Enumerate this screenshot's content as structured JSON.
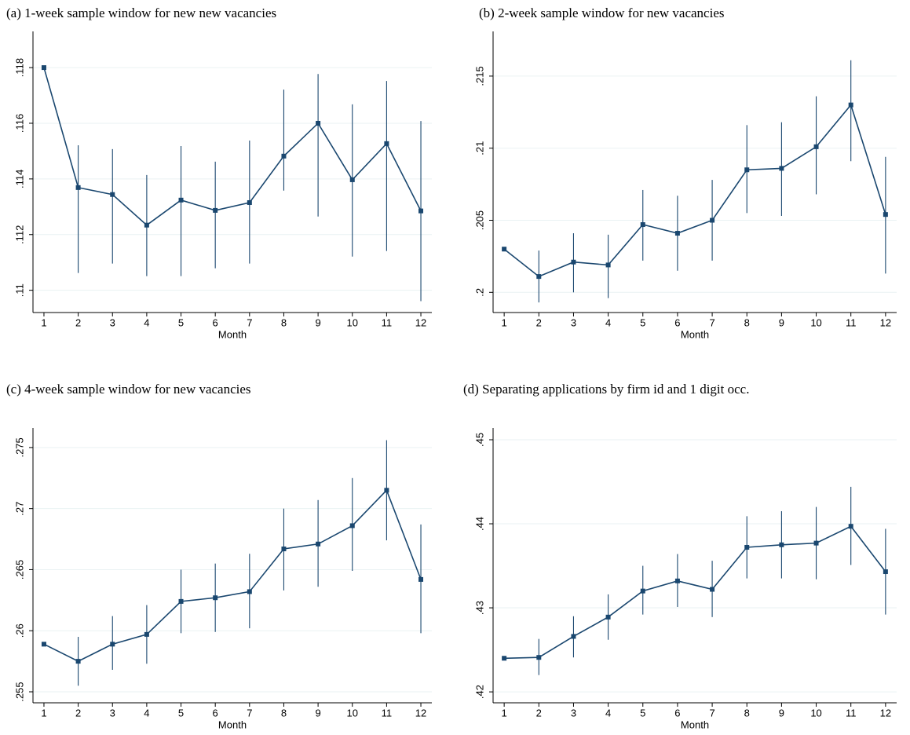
{
  "chart_data": [
    {
      "type": "line",
      "title": "(a) 1-week sample window for new new vacancies",
      "x_label": "Month",
      "x": [
        1,
        2,
        3,
        4,
        5,
        6,
        7,
        8,
        9,
        10,
        11,
        12
      ],
      "xlim": [
        0.68,
        12.32
      ],
      "xticks": [
        1,
        2,
        3,
        4,
        5,
        6,
        7,
        8,
        9,
        10,
        11,
        12
      ],
      "ylim": [
        0.1092,
        0.1193
      ],
      "yticks": [
        {
          "value": 0.11,
          "label": ".11"
        },
        {
          "value": 0.112,
          "label": ".112"
        },
        {
          "value": 0.114,
          "label": ".114"
        },
        {
          "value": 0.116,
          "label": ".116"
        },
        {
          "value": 0.118,
          "label": ".118"
        }
      ],
      "grid": true,
      "color": "#1a476f",
      "values": [
        0.118,
        0.11369,
        0.11344,
        0.11234,
        0.11324,
        0.11287,
        0.11315,
        0.11482,
        0.116,
        0.11397,
        0.11527,
        0.11285
      ],
      "lower": [
        null,
        0.11062,
        0.11096,
        0.11051,
        0.11051,
        0.11079,
        0.11096,
        0.11358,
        0.11265,
        0.11121,
        0.11141,
        0.10961
      ],
      "upper": [
        null,
        0.11521,
        0.11507,
        0.11414,
        0.11518,
        0.11462,
        0.11538,
        0.11721,
        0.11777,
        0.11668,
        0.11752,
        0.11608
      ]
    },
    {
      "type": "line",
      "title": "(b) 2-week sample window for new vacancies",
      "x_label": "Month",
      "x": [
        1,
        2,
        3,
        4,
        5,
        6,
        7,
        8,
        9,
        10,
        11,
        12
      ],
      "xlim": [
        0.68,
        12.32
      ],
      "xticks": [
        1,
        2,
        3,
        4,
        5,
        6,
        7,
        8,
        9,
        10,
        11,
        12
      ],
      "ylim": [
        0.1986,
        0.2181
      ],
      "yticks": [
        {
          "value": 0.2,
          "label": ".2"
        },
        {
          "value": 0.205,
          "label": ".205"
        },
        {
          "value": 0.21,
          "label": ".21"
        },
        {
          "value": 0.215,
          "label": ".215"
        }
      ],
      "grid": true,
      "color": "#1a476f",
      "values": [
        0.203,
        0.2011,
        0.2021,
        0.2019,
        0.2047,
        0.2041,
        0.205,
        0.2085,
        0.2086,
        0.2101,
        0.213,
        0.2054
      ],
      "lower": [
        null,
        0.1993,
        0.2,
        0.1996,
        0.2022,
        0.2015,
        0.2022,
        0.2055,
        0.2053,
        0.2068,
        0.2091,
        0.2013
      ],
      "upper": [
        null,
        0.2029,
        0.2041,
        0.204,
        0.2071,
        0.2067,
        0.2078,
        0.2116,
        0.2118,
        0.2136,
        0.2161,
        0.2094
      ]
    },
    {
      "type": "line",
      "title": "(c) 4-week sample window for new vacancies",
      "x_label": "Month",
      "x": [
        1,
        2,
        3,
        4,
        5,
        6,
        7,
        8,
        9,
        10,
        11,
        12
      ],
      "xlim": [
        0.68,
        12.32
      ],
      "xticks": [
        1,
        2,
        3,
        4,
        5,
        6,
        7,
        8,
        9,
        10,
        11,
        12
      ],
      "ylim": [
        0.2541,
        0.2766
      ],
      "yticks": [
        {
          "value": 0.255,
          "label": ".255"
        },
        {
          "value": 0.26,
          "label": ".26"
        },
        {
          "value": 0.265,
          "label": ".265"
        },
        {
          "value": 0.27,
          "label": ".27"
        },
        {
          "value": 0.275,
          "label": ".275"
        }
      ],
      "grid": true,
      "color": "#1a476f",
      "values": [
        0.2589,
        0.2575,
        0.2589,
        0.2597,
        0.2624,
        0.2627,
        0.2632,
        0.2667,
        0.2671,
        0.2686,
        0.2715,
        0.2642
      ],
      "lower": [
        null,
        0.2555,
        0.2568,
        0.2573,
        0.2598,
        0.2599,
        0.2602,
        0.2633,
        0.2636,
        0.2649,
        0.2674,
        0.2598
      ],
      "upper": [
        null,
        0.2595,
        0.2612,
        0.2621,
        0.265,
        0.2655,
        0.2663,
        0.27,
        0.2707,
        0.2725,
        0.2756,
        0.2687
      ]
    },
    {
      "type": "line",
      "title": "(d) Separating applications by firm id and 1 digit occ.",
      "x_label": "Month",
      "x": [
        1,
        2,
        3,
        4,
        5,
        6,
        7,
        8,
        9,
        10,
        11,
        12
      ],
      "xlim": [
        0.68,
        12.32
      ],
      "xticks": [
        1,
        2,
        3,
        4,
        5,
        6,
        7,
        8,
        9,
        10,
        11,
        12
      ],
      "ylim": [
        0.4187,
        0.4514
      ],
      "yticks": [
        {
          "value": 0.42,
          "label": ".42"
        },
        {
          "value": 0.43,
          "label": ".43"
        },
        {
          "value": 0.44,
          "label": ".44"
        },
        {
          "value": 0.45,
          "label": ".45"
        }
      ],
      "grid": true,
      "color": "#1a476f",
      "values": [
        0.424,
        0.4241,
        0.4266,
        0.4289,
        0.432,
        0.4332,
        0.4322,
        0.4372,
        0.4375,
        0.4377,
        0.4397,
        0.4343
      ],
      "lower": [
        null,
        0.422,
        0.4241,
        0.4262,
        0.4292,
        0.4301,
        0.4289,
        0.4335,
        0.4335,
        0.4334,
        0.4351,
        0.4292
      ],
      "upper": [
        null,
        0.4263,
        0.429,
        0.4316,
        0.435,
        0.4364,
        0.4356,
        0.4409,
        0.4415,
        0.442,
        0.4444,
        0.4394
      ]
    }
  ]
}
